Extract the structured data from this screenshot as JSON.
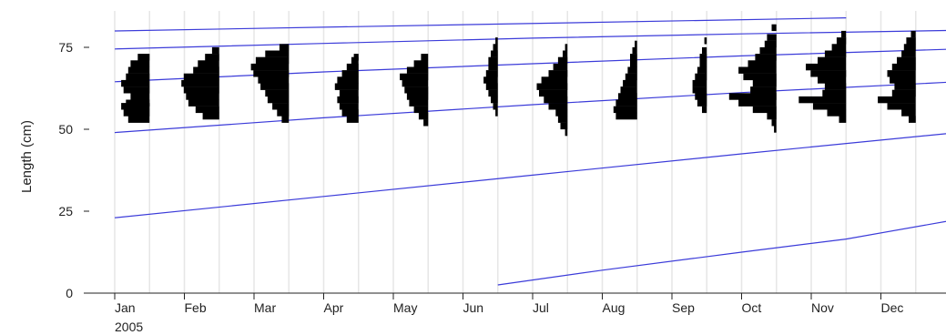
{
  "chart_data": {
    "type": "histogram-overlay",
    "ylabel": "Length (cm)",
    "year_label": "2005",
    "yticks": [
      0,
      25,
      50,
      75
    ],
    "ylim": [
      0,
      86
    ],
    "xlim": [
      0,
      12.1
    ],
    "months": [
      "Jan",
      "Feb",
      "Mar",
      "Apr",
      "May",
      "Jun",
      "Jul",
      "Aug",
      "Sep",
      "Oct",
      "Nov",
      "Dec"
    ],
    "growth_curves": [
      {
        "points": [
          [
            0,
            80.0
          ],
          [
            10.5,
            84.0
          ]
        ]
      },
      {
        "points": [
          [
            0,
            74.5
          ],
          [
            3,
            76.2
          ],
          [
            6,
            77.8
          ],
          [
            9,
            79.1
          ],
          [
            12.1,
            80.2
          ]
        ]
      },
      {
        "points": [
          [
            0,
            64.5
          ],
          [
            3,
            67.5
          ],
          [
            6,
            70.0
          ],
          [
            9,
            72.4
          ],
          [
            12.1,
            74.5
          ]
        ]
      },
      {
        "points": [
          [
            0,
            49.0
          ],
          [
            3,
            53.5
          ],
          [
            6,
            57.5
          ],
          [
            9,
            61.2
          ],
          [
            12.1,
            64.5
          ]
        ]
      },
      {
        "points": [
          [
            0,
            23.0
          ],
          [
            3,
            29.5
          ],
          [
            6,
            36.0
          ],
          [
            9,
            42.5
          ],
          [
            12.1,
            49.0
          ]
        ]
      },
      {
        "points": [
          [
            5.5,
            2.5
          ],
          [
            7,
            7.0
          ],
          [
            9,
            12.5
          ],
          [
            10.5,
            16.5
          ],
          [
            12.1,
            22.5
          ]
        ]
      }
    ],
    "length_frequencies": [
      {
        "month": "Jan",
        "rows": [
          [
            53,
            9
          ],
          [
            55,
            11
          ],
          [
            57,
            12
          ],
          [
            58,
            10
          ],
          [
            60,
            8
          ],
          [
            62,
            11
          ],
          [
            64,
            12
          ],
          [
            66,
            10
          ],
          [
            68,
            9
          ],
          [
            70,
            8
          ],
          [
            72,
            5
          ]
        ]
      },
      {
        "month": "Feb",
        "rows": [
          [
            54,
            7
          ],
          [
            56,
            10
          ],
          [
            58,
            13
          ],
          [
            60,
            14
          ],
          [
            62,
            15
          ],
          [
            64,
            16
          ],
          [
            66,
            15
          ],
          [
            68,
            11
          ],
          [
            70,
            9
          ],
          [
            72,
            6
          ],
          [
            74,
            3
          ]
        ]
      },
      {
        "month": "Mar",
        "rows": [
          [
            53,
            3
          ],
          [
            55,
            5
          ],
          [
            57,
            7
          ],
          [
            59,
            9
          ],
          [
            61,
            10
          ],
          [
            63,
            12
          ],
          [
            65,
            13
          ],
          [
            67,
            15
          ],
          [
            69,
            16
          ],
          [
            71,
            14
          ],
          [
            73,
            10
          ],
          [
            75,
            4
          ]
        ]
      },
      {
        "month": "Apr",
        "rows": [
          [
            53,
            5
          ],
          [
            55,
            7
          ],
          [
            57,
            8
          ],
          [
            59,
            9
          ],
          [
            61,
            8
          ],
          [
            63,
            10
          ],
          [
            65,
            9
          ],
          [
            67,
            7
          ],
          [
            69,
            5
          ],
          [
            71,
            3
          ],
          [
            72,
            2
          ]
        ]
      },
      {
        "month": "May",
        "rows": [
          [
            52,
            2
          ],
          [
            54,
            4
          ],
          [
            56,
            6
          ],
          [
            58,
            8
          ],
          [
            60,
            9
          ],
          [
            62,
            10
          ],
          [
            64,
            11
          ],
          [
            66,
            12
          ],
          [
            68,
            9
          ],
          [
            70,
            6
          ],
          [
            72,
            3
          ]
        ]
      },
      {
        "month": "Jun",
        "rows": [
          [
            55,
            1
          ],
          [
            57,
            2
          ],
          [
            59,
            3
          ],
          [
            61,
            4
          ],
          [
            63,
            5
          ],
          [
            65,
            6
          ],
          [
            67,
            5
          ],
          [
            69,
            4
          ],
          [
            71,
            4
          ],
          [
            73,
            3
          ],
          [
            75,
            2
          ],
          [
            77,
            1
          ]
        ]
      },
      {
        "month": "Jul",
        "rows": [
          [
            49,
            1
          ],
          [
            51,
            3
          ],
          [
            53,
            4
          ],
          [
            55,
            5
          ],
          [
            57,
            8
          ],
          [
            59,
            10
          ],
          [
            61,
            12
          ],
          [
            63,
            13
          ],
          [
            65,
            11
          ],
          [
            67,
            8
          ],
          [
            69,
            6
          ],
          [
            71,
            4
          ],
          [
            73,
            2
          ],
          [
            75,
            1
          ]
        ]
      },
      {
        "month": "Aug",
        "rows": [
          [
            54,
            9
          ],
          [
            56,
            10
          ],
          [
            58,
            9
          ],
          [
            60,
            8
          ],
          [
            62,
            7
          ],
          [
            64,
            6
          ],
          [
            66,
            5
          ],
          [
            68,
            4
          ],
          [
            70,
            3
          ],
          [
            72,
            3
          ],
          [
            74,
            2
          ],
          [
            76,
            1
          ]
        ]
      },
      {
        "month": "Sep",
        "rows": [
          [
            56,
            2
          ],
          [
            58,
            4
          ],
          [
            60,
            5
          ],
          [
            62,
            6
          ],
          [
            64,
            6
          ],
          [
            66,
            5
          ],
          [
            68,
            4
          ],
          [
            70,
            3
          ],
          [
            72,
            3
          ],
          [
            74,
            2
          ],
          [
            77,
            1
          ]
        ]
      },
      {
        "month": "Oct",
        "rows": [
          [
            50,
            1
          ],
          [
            52,
            2
          ],
          [
            54,
            4
          ],
          [
            56,
            10
          ],
          [
            58,
            16
          ],
          [
            60,
            20
          ],
          [
            62,
            11
          ],
          [
            64,
            10
          ],
          [
            66,
            14
          ],
          [
            68,
            16
          ],
          [
            70,
            12
          ],
          [
            72,
            9
          ],
          [
            74,
            7
          ],
          [
            76,
            5
          ],
          [
            78,
            4
          ],
          [
            81,
            2
          ]
        ]
      },
      {
        "month": "Nov",
        "rows": [
          [
            53,
            3
          ],
          [
            55,
            8
          ],
          [
            57,
            14
          ],
          [
            59,
            20
          ],
          [
            61,
            10
          ],
          [
            63,
            9
          ],
          [
            65,
            12
          ],
          [
            67,
            15
          ],
          [
            69,
            17
          ],
          [
            71,
            12
          ],
          [
            73,
            9
          ],
          [
            75,
            6
          ],
          [
            77,
            4
          ],
          [
            79,
            2
          ]
        ]
      },
      {
        "month": "Dec",
        "rows": [
          [
            53,
            3
          ],
          [
            55,
            6
          ],
          [
            57,
            12
          ],
          [
            59,
            16
          ],
          [
            61,
            10
          ],
          [
            63,
            9
          ],
          [
            65,
            11
          ],
          [
            67,
            12
          ],
          [
            69,
            10
          ],
          [
            71,
            8
          ],
          [
            73,
            6
          ],
          [
            75,
            5
          ],
          [
            77,
            4
          ],
          [
            79,
            2
          ]
        ]
      }
    ]
  }
}
